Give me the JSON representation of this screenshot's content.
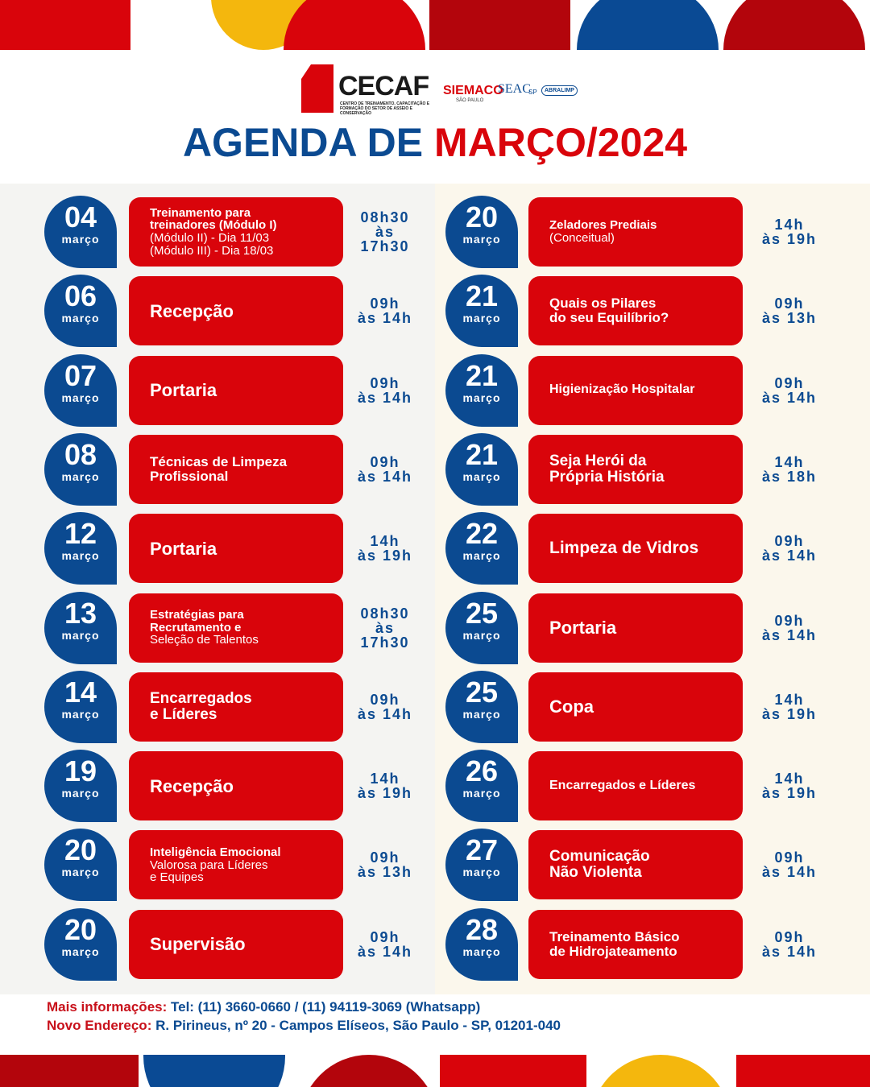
{
  "header": {
    "logo": {
      "name": "CECAF",
      "subtitle": "CENTRO DE TREINAMENTO, CAPACITAÇÃO E FORMAÇÃO DO SETOR DE ASSEIO E CONSERVAÇÃO",
      "partner1": "SIEMACO",
      "partner1_sub": "SÃO PAULO",
      "partner2": "SEAC",
      "partner2_sub": "SP",
      "partner3": "ABRALIMP"
    },
    "title_part1": "AGENDA DE",
    "title_part2": "MARÇO/2024"
  },
  "columns": [
    {
      "events": [
        {
          "day": "04",
          "month": "março",
          "title": [
            "Treinamento para",
            "treinadores (Módulo I)"
          ],
          "details": [
            "(Módulo II) - Dia 11/03",
            "(Módulo III) - Dia 18/03"
          ],
          "time": [
            "08h30",
            "às",
            "17h30"
          ]
        },
        {
          "day": "06",
          "month": "março",
          "title": [
            "Recepção"
          ],
          "details": [],
          "time": [
            "09h",
            "às 14h"
          ]
        },
        {
          "day": "07",
          "month": "março",
          "title": [
            "Portaria"
          ],
          "details": [],
          "time": [
            "09h",
            "às 14h"
          ]
        },
        {
          "day": "08",
          "month": "março",
          "title": [
            "Técnicas de Limpeza",
            "Profissional"
          ],
          "details": [],
          "time": [
            "09h",
            "às 14h"
          ]
        },
        {
          "day": "12",
          "month": "março",
          "title": [
            "Portaria"
          ],
          "details": [],
          "time": [
            "14h",
            "às 19h"
          ]
        },
        {
          "day": "13",
          "month": "março",
          "title": [
            "Estratégias para",
            "Recrutamento e"
          ],
          "details": [
            "Seleção de Talentos"
          ],
          "time": [
            "08h30",
            "às",
            "17h30"
          ]
        },
        {
          "day": "14",
          "month": "março",
          "title": [
            "Encarregados",
            "e Líderes"
          ],
          "details": [],
          "time": [
            "09h",
            "às 14h"
          ]
        },
        {
          "day": "19",
          "month": "março",
          "title": [
            "Recepção"
          ],
          "details": [],
          "time": [
            "14h",
            "às 19h"
          ]
        },
        {
          "day": "20",
          "month": "março",
          "title": [
            "Inteligência Emocional"
          ],
          "details": [
            "Valorosa para Líderes",
            "e Equipes"
          ],
          "time": [
            "09h",
            "às 13h"
          ]
        },
        {
          "day": "20",
          "month": "março",
          "title": [
            "Supervisão"
          ],
          "details": [],
          "time": [
            "09h",
            "às 14h"
          ]
        }
      ]
    },
    {
      "events": [
        {
          "day": "20",
          "month": "março",
          "title": [
            "Zeladores Prediais"
          ],
          "details": [
            "(Conceitual)"
          ],
          "time": [
            "14h",
            "às 19h"
          ]
        },
        {
          "day": "21",
          "month": "março",
          "title": [
            "Quais os Pilares",
            "do seu Equilíbrio?"
          ],
          "details": [],
          "time": [
            "09h",
            "às 13h"
          ]
        },
        {
          "day": "21",
          "month": "março",
          "title": [
            "Higienização Hospitalar"
          ],
          "details": [],
          "time": [
            "09h",
            "às 14h"
          ]
        },
        {
          "day": "21",
          "month": "março",
          "title": [
            "Seja Herói da",
            "Própria História"
          ],
          "details": [],
          "time": [
            "14h",
            "às 18h"
          ]
        },
        {
          "day": "22",
          "month": "março",
          "title": [
            "Limpeza de Vidros"
          ],
          "details": [],
          "time": [
            "09h",
            "às 14h"
          ]
        },
        {
          "day": "25",
          "month": "março",
          "title": [
            "Portaria"
          ],
          "details": [],
          "time": [
            "09h",
            "às 14h"
          ]
        },
        {
          "day": "25",
          "month": "março",
          "title": [
            "Copa"
          ],
          "details": [],
          "time": [
            "14h",
            "às 19h"
          ]
        },
        {
          "day": "26",
          "month": "março",
          "title": [
            "Encarregados e Líderes"
          ],
          "details": [],
          "time": [
            "14h",
            "às 19h"
          ]
        },
        {
          "day": "27",
          "month": "março",
          "title": [
            "Comunicação",
            "Não Violenta"
          ],
          "details": [],
          "time": [
            "09h",
            "às 14h"
          ]
        },
        {
          "day": "28",
          "month": "março",
          "title": [
            "Treinamento Básico",
            "de Hidrojateamento"
          ],
          "details": [],
          "time": [
            "09h",
            "às 14h"
          ]
        }
      ]
    }
  ],
  "footer": {
    "info_label": "Mais informações:",
    "info_text": "Tel: (11) 3660-0660 / (11) 94119-3069 (Whatsapp)",
    "address_label": "Novo Endereço:",
    "address_text": "R. Pirineus, nº 20 - Campos Elíseos, São Paulo - SP, 01201-040"
  }
}
